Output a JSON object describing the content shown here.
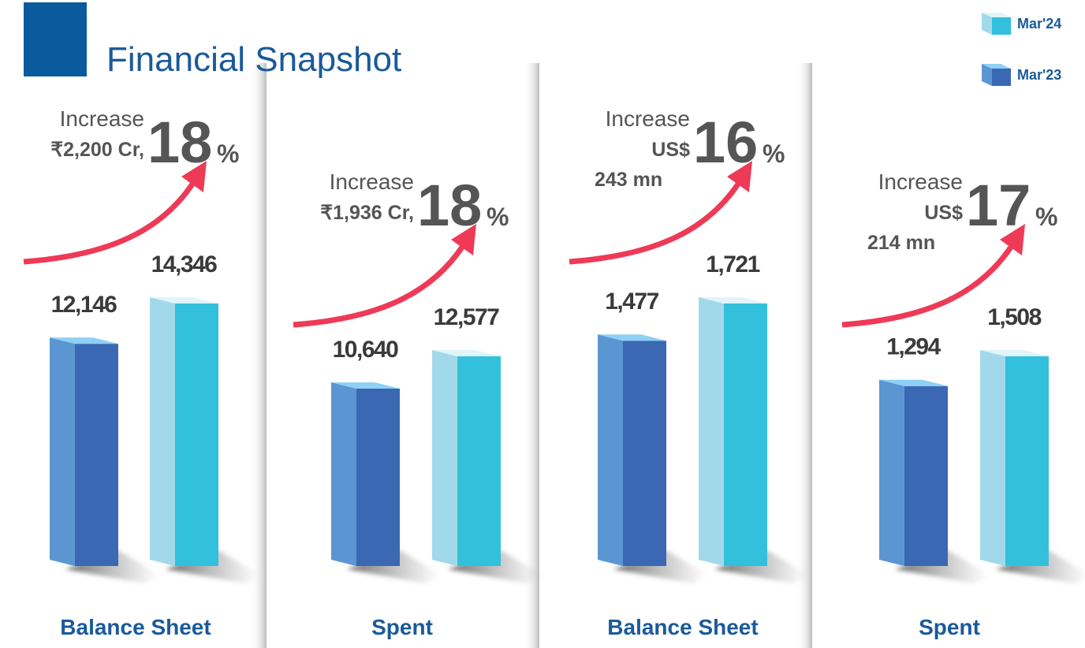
{
  "title": "Financial Snapshot",
  "legend": [
    {
      "name": "Mar'23",
      "color": "#3a68b3",
      "side_color": "#5b96d2",
      "top_color": "#8ed0f6"
    },
    {
      "name": "Mar'24",
      "color": "#33c0dc",
      "side_color": "#a2d9ea",
      "top_color": "#e0f4fb"
    }
  ],
  "chart_data": [
    {
      "type": "bar",
      "label": "Balance Sheet",
      "values": [
        12146,
        14346
      ],
      "value_labels": [
        "12,146",
        "14,346"
      ],
      "increase": {
        "label": "Increase",
        "amount": [
          "₹2,200 Cr,"
        ],
        "percent": 18,
        "percent_unit": "%"
      }
    },
    {
      "type": "bar",
      "label": "Spent",
      "values": [
        10640,
        12577
      ],
      "value_labels": [
        "10,640",
        "12,577"
      ],
      "increase": {
        "label": "Increase",
        "amount": [
          "₹1,936 Cr,"
        ],
        "percent": 18,
        "percent_unit": "%"
      }
    },
    {
      "type": "bar",
      "label": "Balance Sheet",
      "values": [
        1477,
        1721
      ],
      "value_labels": [
        "1,477",
        "1,721"
      ],
      "increase": {
        "label": "Increase",
        "amount": [
          "US$",
          "243 mn"
        ],
        "percent": 16,
        "percent_unit": "%"
      }
    },
    {
      "type": "bar",
      "label": "Spent",
      "values": [
        1294,
        1508
      ],
      "value_labels": [
        "1,294",
        "1,508"
      ],
      "increase": {
        "label": "Increase",
        "amount": [
          "US$",
          "214 mn"
        ],
        "percent": 17,
        "percent_unit": "%"
      }
    }
  ]
}
